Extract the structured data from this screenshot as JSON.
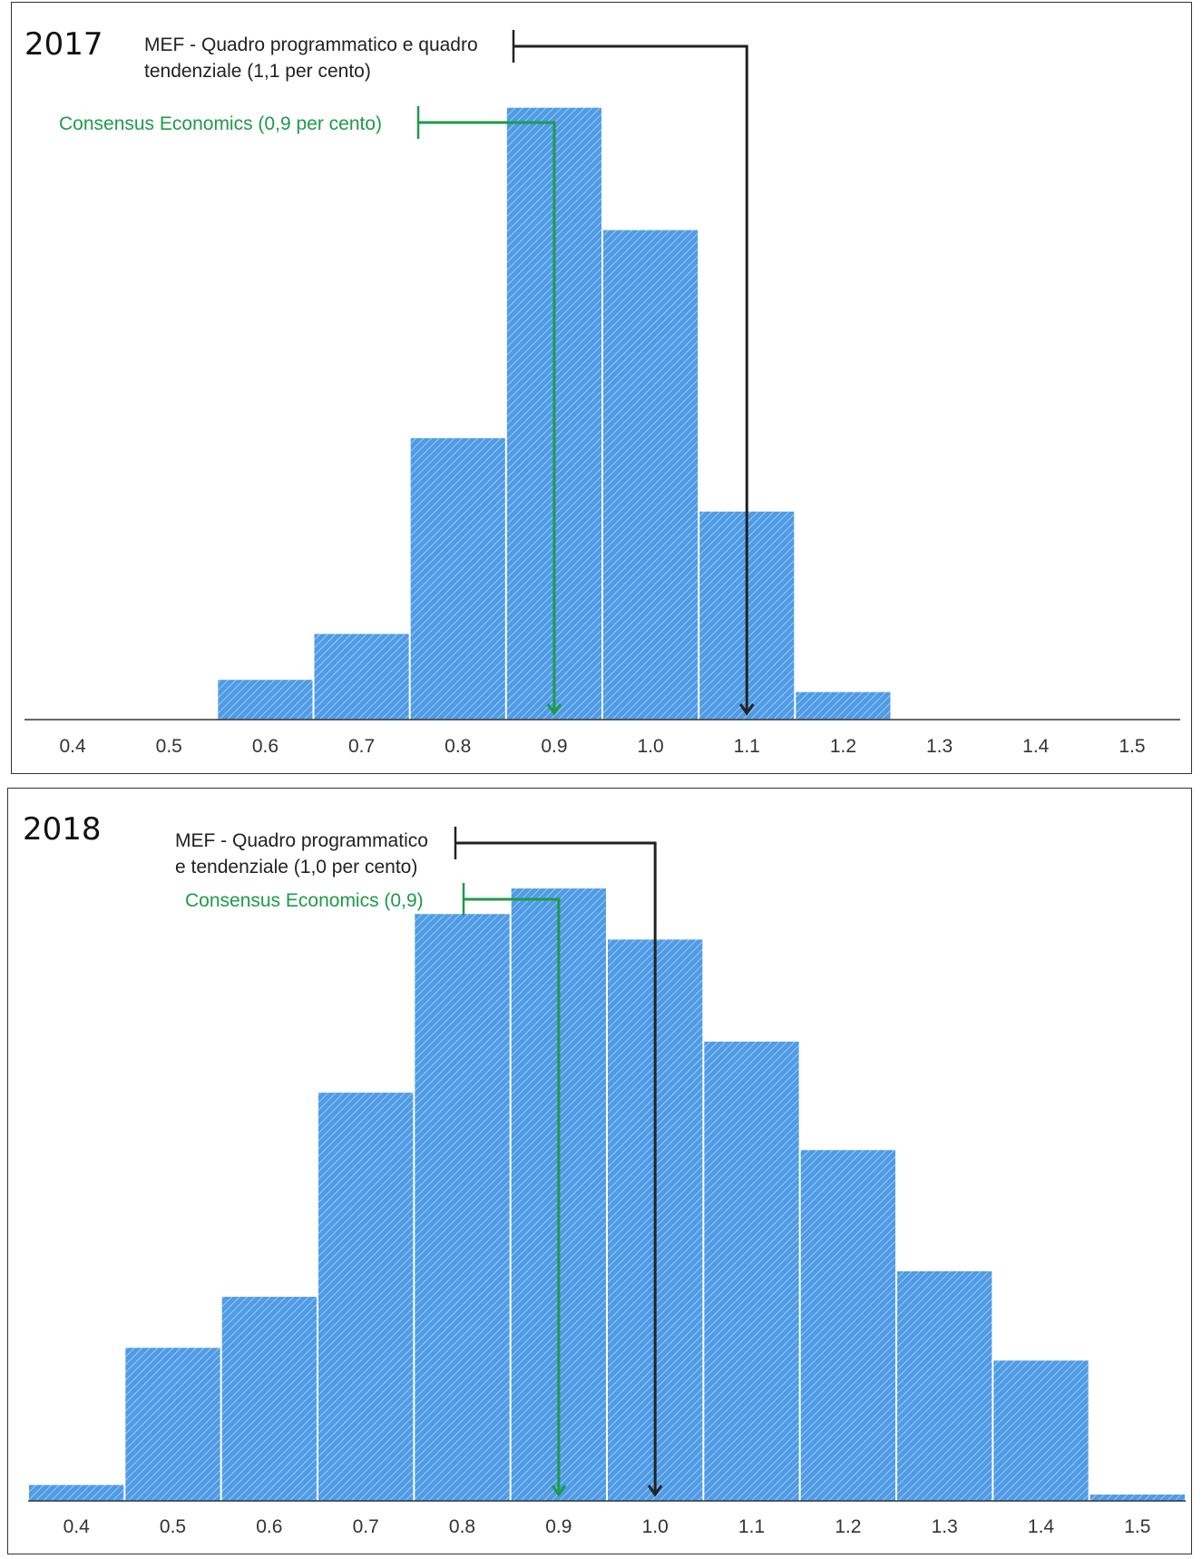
{
  "chart_data": [
    {
      "type": "bar",
      "title": "2017",
      "x": [
        0.6,
        0.7,
        0.8,
        0.9,
        1.0,
        1.1,
        1.2
      ],
      "values": [
        0.065,
        0.14,
        0.46,
        1.0,
        0.8,
        0.34,
        0.045
      ],
      "xticks": [
        "0.4",
        "0.5",
        "0.6",
        "0.7",
        "0.8",
        "0.9",
        "1.0",
        "1.1",
        "1.2",
        "1.3",
        "1.4",
        "1.5"
      ],
      "xlim": [
        0.35,
        1.55
      ],
      "ylim": [
        0,
        1.05
      ],
      "bar_color": "#4f9be6",
      "annotations": [
        {
          "lines": [
            "MEF - Quadro programmatico e quadro",
            "tendenziale (1,1 per cento)"
          ],
          "x": 1.1,
          "color": "#222222"
        },
        {
          "lines": [
            "Consensus Economics (0,9 per cento)"
          ],
          "x": 0.9,
          "color": "#1e9a4a"
        }
      ]
    },
    {
      "type": "bar",
      "title": "2018",
      "x": [
        0.4,
        0.5,
        0.6,
        0.7,
        0.8,
        0.9,
        1.0,
        1.1,
        1.2,
        1.3,
        1.4,
        1.5
      ],
      "values": [
        0.025,
        0.24,
        0.32,
        0.64,
        0.92,
        0.96,
        0.88,
        0.72,
        0.55,
        0.36,
        0.22,
        0.01
      ],
      "xticks": [
        "0.4",
        "0.5",
        "0.6",
        "0.7",
        "0.8",
        "0.9",
        "1.0",
        "1.1",
        "1.2",
        "1.3",
        "1.4",
        "1.5"
      ],
      "xlim": [
        0.35,
        1.55
      ],
      "ylim": [
        0,
        1.0
      ],
      "bar_color": "#4f9be6",
      "annotations": [
        {
          "lines": [
            "MEF - Quadro programmatico",
            "e tendenziale (1,0 per cento)"
          ],
          "x": 1.0,
          "color": "#222222"
        },
        {
          "lines": [
            "Consensus Economics (0,9)"
          ],
          "x": 0.9,
          "color": "#1e9a4a"
        }
      ]
    }
  ]
}
